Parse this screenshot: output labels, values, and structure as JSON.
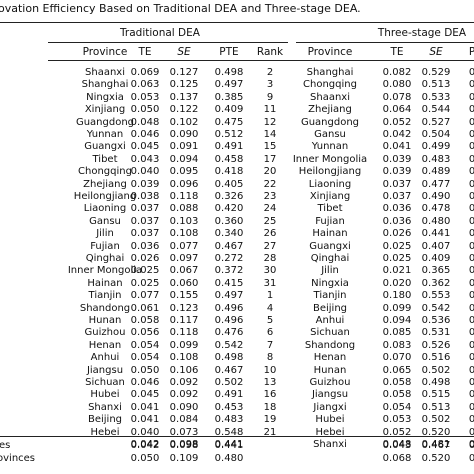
{
  "caption": "ovation Efficiency Based on Traditional DEA and Three-stage DEA.",
  "groups": {
    "left": "Traditional DEA",
    "right": "Three-stage DEA"
  },
  "headers": {
    "left": [
      "Province",
      "TE",
      "SE",
      "PTE",
      "Rank"
    ],
    "right": [
      "Province",
      "TE",
      "SE",
      "P"
    ]
  },
  "rows": [
    {
      "l": [
        "Shaanxi",
        "0.069",
        "0.127",
        "0.498",
        "2"
      ],
      "r": [
        "Shanghai",
        "0.082",
        "0.529",
        "0"
      ]
    },
    {
      "l": [
        "Shanghai",
        "0.063",
        "0.125",
        "0.497",
        "3"
      ],
      "r": [
        "Chongqing",
        "0.080",
        "0.513",
        "0"
      ]
    },
    {
      "l": [
        "Ningxia",
        "0.053",
        "0.137",
        "0.385",
        "9"
      ],
      "r": [
        "Shaanxi",
        "0.078",
        "0.533",
        "0"
      ]
    },
    {
      "l": [
        "Xinjiang",
        "0.050",
        "0.122",
        "0.409",
        "11"
      ],
      "r": [
        "Zhejiang",
        "0.064",
        "0.544",
        "0"
      ]
    },
    {
      "l": [
        "Guangdong",
        "0.048",
        "0.102",
        "0.475",
        "12"
      ],
      "r": [
        "Guangdong",
        "0.052",
        "0.527",
        "0"
      ]
    },
    {
      "l": [
        "Yunnan",
        "0.046",
        "0.090",
        "0.512",
        "14"
      ],
      "r": [
        "Gansu",
        "0.042",
        "0.504",
        "0"
      ]
    },
    {
      "l": [
        "Guangxi",
        "0.045",
        "0.091",
        "0.491",
        "15"
      ],
      "r": [
        "Yunnan",
        "0.041",
        "0.499",
        "0"
      ]
    },
    {
      "l": [
        "Tibet",
        "0.043",
        "0.094",
        "0.458",
        "17"
      ],
      "r": [
        "Inner Mongolia",
        "0.039",
        "0.483",
        "0"
      ]
    },
    {
      "l": [
        "Chongqing",
        "0.040",
        "0.095",
        "0.418",
        "20"
      ],
      "r": [
        "Heilongjiang",
        "0.039",
        "0.489",
        "0"
      ]
    },
    {
      "l": [
        "Zhejiang",
        "0.039",
        "0.096",
        "0.405",
        "22"
      ],
      "r": [
        "Liaoning",
        "0.037",
        "0.477",
        "0"
      ]
    },
    {
      "l": [
        "Heilongjiang",
        "0.038",
        "0.118",
        "0.326",
        "23"
      ],
      "r": [
        "Xinjiang",
        "0.037",
        "0.490",
        "0"
      ]
    },
    {
      "l": [
        "Liaoning",
        "0.037",
        "0.088",
        "0.420",
        "24"
      ],
      "r": [
        "Tibet",
        "0.036",
        "0.478",
        "0"
      ]
    },
    {
      "l": [
        "Gansu",
        "0.037",
        "0.103",
        "0.360",
        "25"
      ],
      "r": [
        "Fujian",
        "0.036",
        "0.480",
        "0"
      ]
    },
    {
      "l": [
        "Jilin",
        "0.037",
        "0.108",
        "0.340",
        "26"
      ],
      "r": [
        "Hainan",
        "0.026",
        "0.441",
        "0"
      ]
    },
    {
      "l": [
        "Fujian",
        "0.036",
        "0.077",
        "0.467",
        "27"
      ],
      "r": [
        "Guangxi",
        "0.025",
        "0.407",
        "0"
      ]
    },
    {
      "l": [
        "Qinghai",
        "0.026",
        "0.097",
        "0.272",
        "28"
      ],
      "r": [
        "Qinghai",
        "0.025",
        "0.409",
        "0"
      ]
    },
    {
      "l": [
        "Inner Mongolia",
        "0.025",
        "0.067",
        "0.372",
        "30"
      ],
      "r": [
        "Jilin",
        "0.021",
        "0.365",
        "0"
      ]
    },
    {
      "l": [
        "Hainan",
        "0.025",
        "0.060",
        "0.415",
        "31"
      ],
      "r": [
        "Ningxia",
        "0.020",
        "0.362",
        "0"
      ]
    },
    {
      "l": [
        "Tianjin",
        "0.077",
        "0.155",
        "0.497",
        "1"
      ],
      "r": [
        "Tianjin",
        "0.180",
        "0.553",
        "0"
      ]
    },
    {
      "l": [
        "Shandong",
        "0.061",
        "0.123",
        "0.496",
        "4"
      ],
      "r": [
        "Beijing",
        "0.099",
        "0.542",
        "0"
      ]
    },
    {
      "l": [
        "Hunan",
        "0.058",
        "0.117",
        "0.496",
        "5"
      ],
      "r": [
        "Anhui",
        "0.094",
        "0.536",
        "0"
      ]
    },
    {
      "l": [
        "Guizhou",
        "0.056",
        "0.118",
        "0.476",
        "6"
      ],
      "r": [
        "Sichuan",
        "0.085",
        "0.531",
        "0"
      ]
    },
    {
      "l": [
        "Henan",
        "0.054",
        "0.099",
        "0.542",
        "7"
      ],
      "r": [
        "Shandong",
        "0.083",
        "0.526",
        "0"
      ]
    },
    {
      "l": [
        "Anhui",
        "0.054",
        "0.108",
        "0.498",
        "8"
      ],
      "r": [
        "Henan",
        "0.070",
        "0.516",
        "0"
      ]
    },
    {
      "l": [
        "Jiangsu",
        "0.050",
        "0.106",
        "0.467",
        "10"
      ],
      "r": [
        "Hunan",
        "0.065",
        "0.502",
        "0"
      ]
    },
    {
      "l": [
        "Sichuan",
        "0.046",
        "0.092",
        "0.502",
        "13"
      ],
      "r": [
        "Guizhou",
        "0.058",
        "0.498",
        "0"
      ]
    },
    {
      "l": [
        "Hubei",
        "0.045",
        "0.092",
        "0.491",
        "16"
      ],
      "r": [
        "Jiangsu",
        "0.058",
        "0.515",
        "0"
      ]
    },
    {
      "l": [
        "Shanxi",
        "0.041",
        "0.090",
        "0.453",
        "18"
      ],
      "r": [
        "Jiangxi",
        "0.054",
        "0.513",
        "0"
      ]
    },
    {
      "l": [
        "Beijing",
        "0.041",
        "0.084",
        "0.483",
        "19"
      ],
      "r": [
        "Hubei",
        "0.053",
        "0.502",
        "0"
      ]
    },
    {
      "l": [
        "Hebei",
        "0.040",
        "0.073",
        "0.548",
        "21"
      ],
      "r": [
        "Hebei",
        "0.052",
        "0.520",
        "0"
      ]
    },
    {
      "l": [
        "",
        "0.042",
        "0.098",
        "0.441",
        ""
      ],
      "r": [
        "Shanxi",
        "0.048",
        "0.481",
        "0"
      ]
    }
  ],
  "summary": [
    {
      "label": "es",
      "l": [
        "0.042",
        "0.098",
        "0.441"
      ],
      "r": [
        "0.043",
        "0.467",
        "0"
      ]
    },
    {
      "label": "ovinces",
      "l": [
        "0.050",
        "0.109",
        "0.480"
      ],
      "r": [
        "0.068",
        "0.520",
        "0"
      ]
    }
  ]
}
